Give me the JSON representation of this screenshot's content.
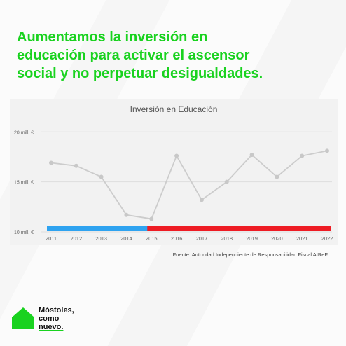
{
  "headline": {
    "lines": [
      "Aumentamos la inversión en",
      "educación para activar el ascensor",
      "social y no perpetuar desigualdades."
    ],
    "color": "#19d21f"
  },
  "chart_data": {
    "type": "line",
    "title": "Inversión en Educación",
    "x": [
      "2011",
      "2012",
      "2013",
      "2014",
      "2015",
      "2016",
      "2017",
      "2018",
      "2019",
      "2020",
      "2021",
      "2022"
    ],
    "values": [
      16.9,
      16.6,
      15.5,
      11.7,
      11.3,
      17.6,
      13.2,
      15.0,
      17.7,
      15.5,
      17.6,
      18.1
    ],
    "yticks": [
      {
        "value": 10,
        "label": "10 mill. €"
      },
      {
        "value": 15,
        "label": "15 mill. €"
      },
      {
        "value": 20,
        "label": "20 mill. €"
      }
    ],
    "ylim": [
      10,
      21
    ],
    "line_color": "#cccccc",
    "grid": true,
    "periods": [
      {
        "from": "2011",
        "to": "2015",
        "color": "#2fa3f0"
      },
      {
        "from": "2015",
        "to": "2022",
        "color": "#ee1c24"
      }
    ]
  },
  "source": "Fuente: Autoridad Independiente de Responsabilidad Fiscal AIReF",
  "brand": {
    "lines": [
      "Móstoles,",
      "como",
      "nuevo."
    ],
    "icon": "house-icon",
    "color": "#19d21f"
  }
}
